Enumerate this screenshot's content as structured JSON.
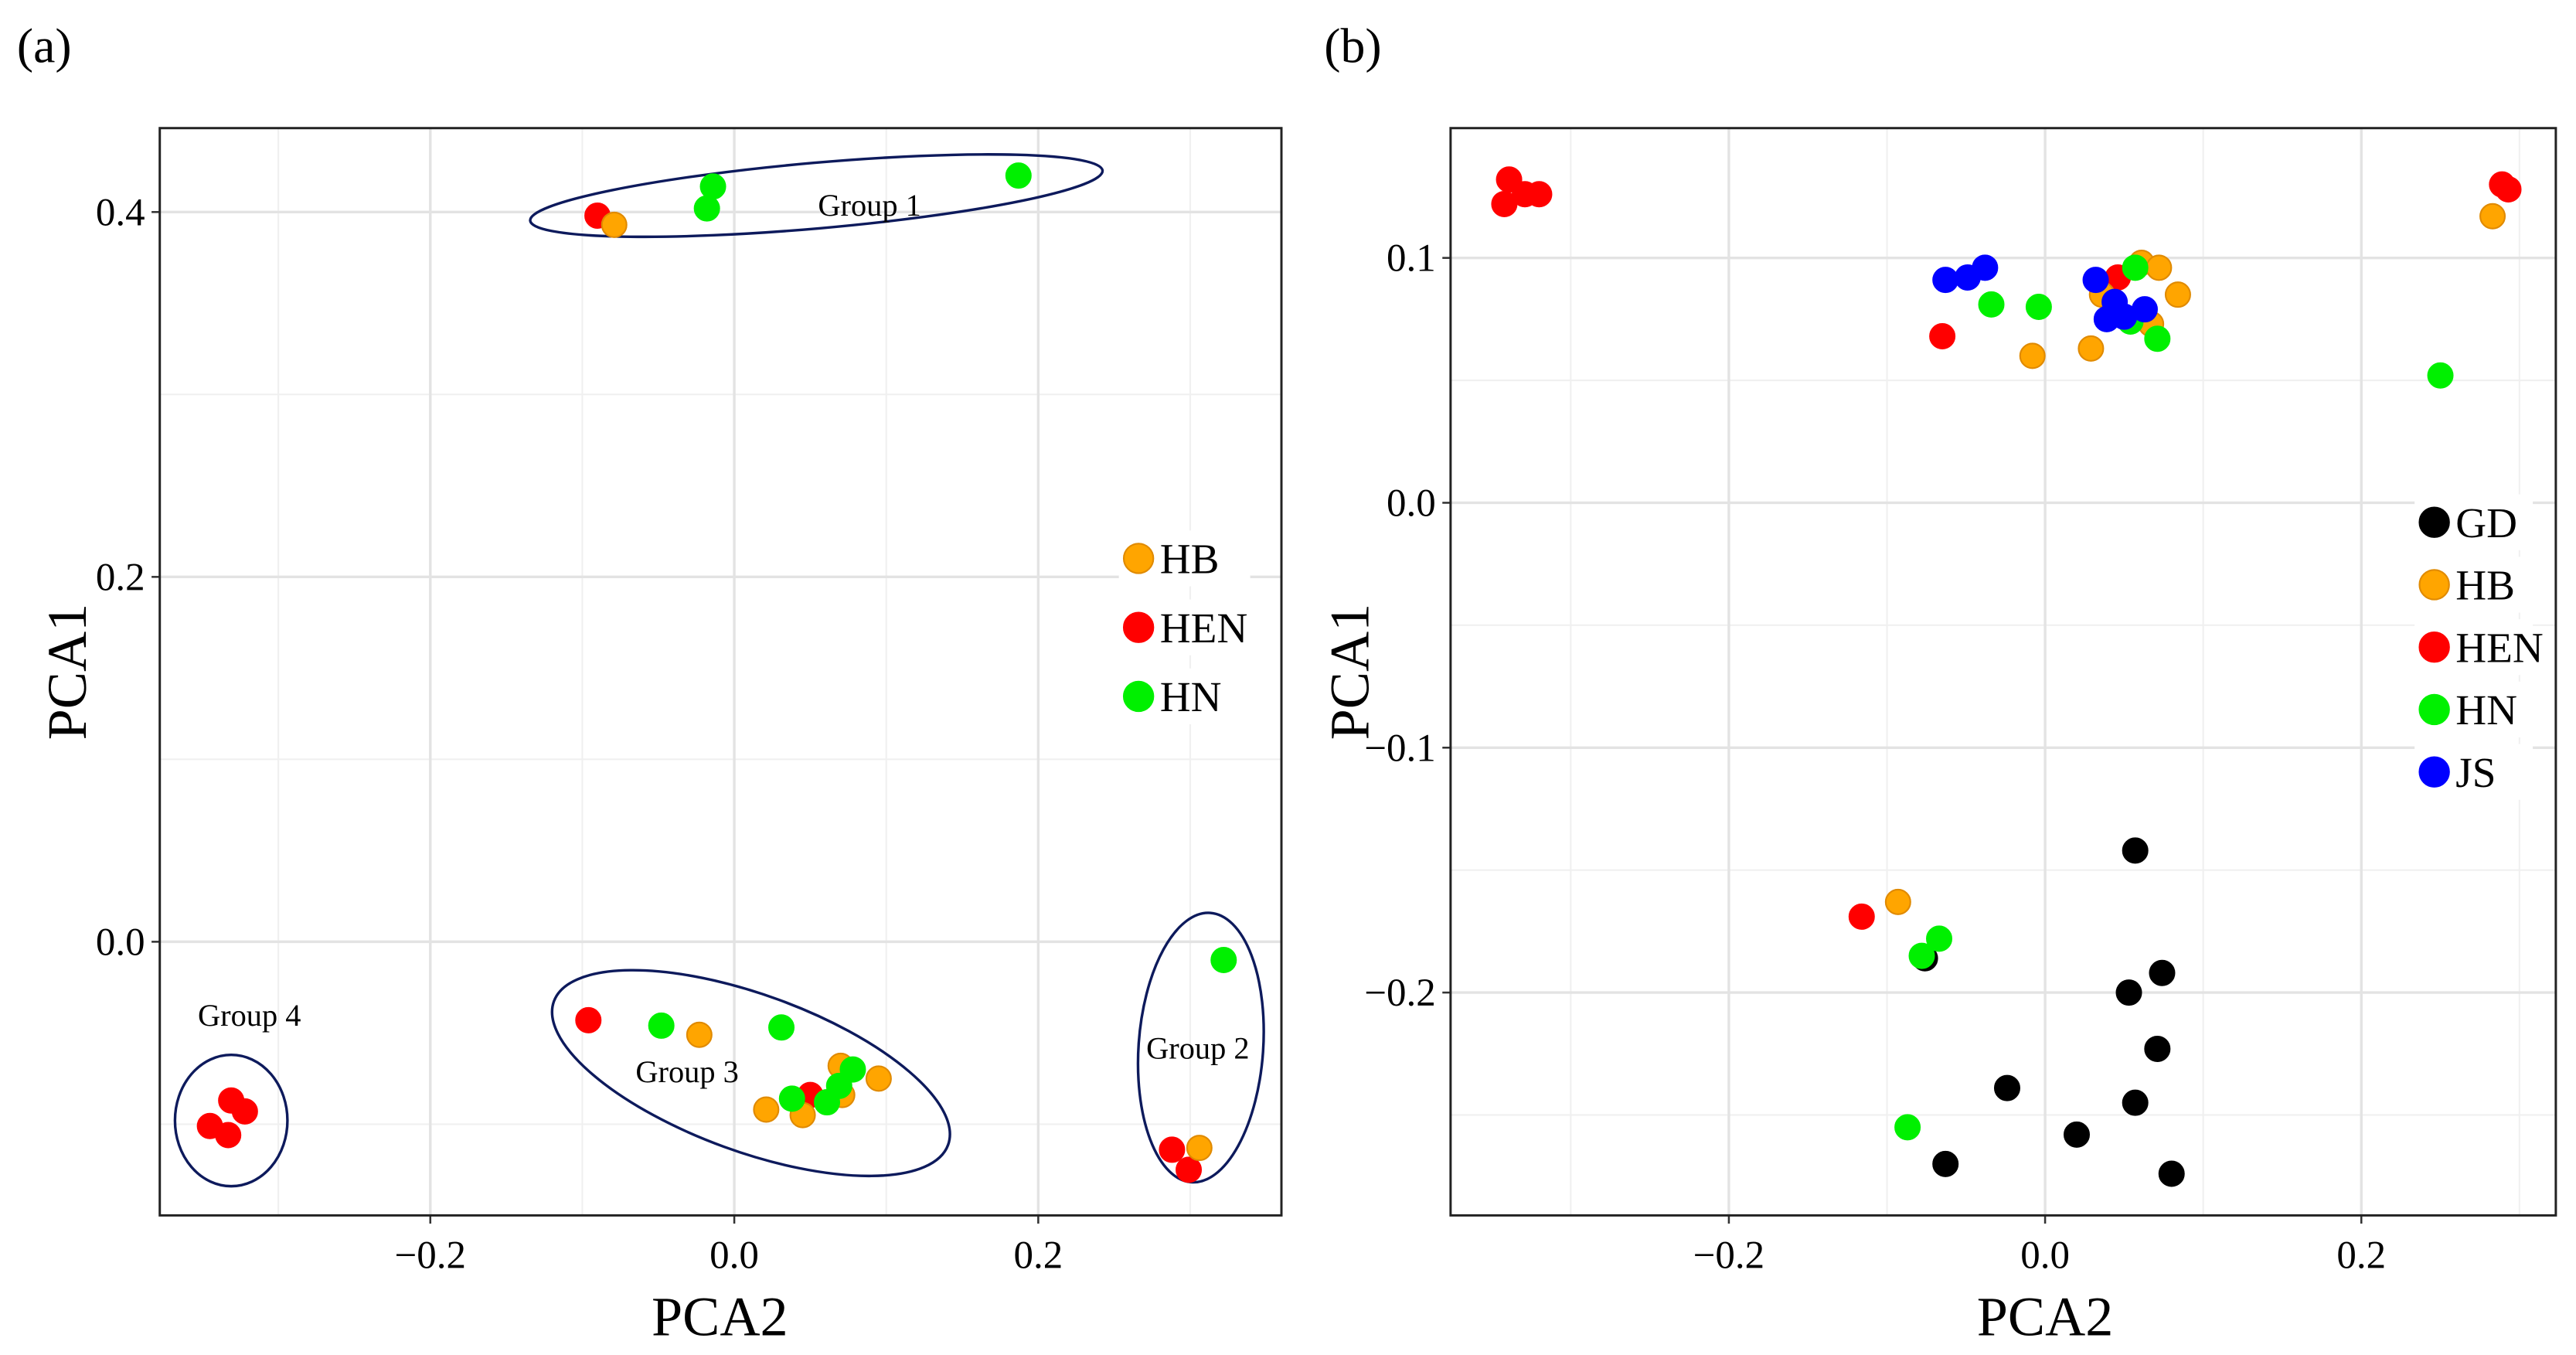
{
  "chart_data": [
    {
      "panel_label": "(a)",
      "type": "scatter",
      "xlabel": "PCA2",
      "ylabel": "PCA1",
      "xlim": [
        -0.378,
        0.36
      ],
      "ylim": [
        -0.15,
        0.446
      ],
      "xticks": [
        -0.2,
        0.0,
        0.2
      ],
      "xtick_labels": [
        "−0.2",
        "0.0",
        "0.2"
      ],
      "yticks": [
        0.0,
        0.2,
        0.4
      ],
      "ytick_labels": [
        "0.0",
        "0.2",
        "0.4"
      ],
      "minor_x": [
        -0.3,
        -0.1,
        0.1,
        0.3
      ],
      "minor_y": [
        -0.1,
        0.1,
        0.3
      ],
      "grid": true,
      "legend_placement": "right",
      "legend": [
        "HB",
        "HEN",
        "HN"
      ],
      "series": [
        {
          "name": "HEN",
          "color": "#FF0000",
          "points": [
            [
              -0.09,
              0.398
            ],
            [
              0.288,
              -0.114
            ],
            [
              0.299,
              -0.125
            ],
            [
              -0.096,
              -0.043
            ],
            [
              0.05,
              -0.084
            ],
            [
              -0.345,
              -0.101
            ],
            [
              -0.331,
              -0.087
            ],
            [
              -0.322,
              -0.093
            ],
            [
              -0.333,
              -0.106
            ]
          ]
        },
        {
          "name": "HB",
          "color": "#FFA500",
          "points": [
            [
              -0.079,
              0.393
            ],
            [
              0.306,
              -0.113
            ],
            [
              -0.023,
              -0.051
            ],
            [
              0.07,
              -0.068
            ],
            [
              0.095,
              -0.075
            ],
            [
              0.021,
              -0.092
            ],
            [
              0.045,
              -0.095
            ],
            [
              0.071,
              -0.084
            ]
          ]
        },
        {
          "name": "HN",
          "color": "#00F000",
          "points": [
            [
              -0.014,
              0.414
            ],
            [
              -0.018,
              0.402
            ],
            [
              0.187,
              0.42
            ],
            [
              0.322,
              -0.01
            ],
            [
              -0.048,
              -0.046
            ],
            [
              0.031,
              -0.047
            ],
            [
              0.078,
              -0.07
            ],
            [
              0.038,
              -0.086
            ],
            [
              0.061,
              -0.088
            ],
            [
              0.069,
              -0.079
            ]
          ]
        }
      ],
      "annotations": [
        {
          "text": "Group 1",
          "x": 0.089,
          "y": 0.398,
          "ellipse": {
            "cx": 0.054,
            "cy": 0.409,
            "rx": 0.189,
            "ry": 0.018,
            "angle": -5
          }
        },
        {
          "text": "Group 2",
          "x": 0.305,
          "y": -0.064,
          "ellipse": {
            "cx": 0.307,
            "cy": -0.058,
            "rx": 0.041,
            "ry": 0.074,
            "angle": 4
          }
        },
        {
          "text": "Group 3",
          "x": -0.031,
          "y": -0.077,
          "ellipse": {
            "cx": 0.011,
            "cy": -0.072,
            "rx": 0.138,
            "ry": 0.043,
            "angle": 20
          }
        },
        {
          "text": "Group 4",
          "x": -0.319,
          "y": -0.046,
          "ellipse": {
            "cx": -0.331,
            "cy": -0.098,
            "rx": 0.037,
            "ry": 0.036,
            "angle": 0
          }
        }
      ]
    },
    {
      "panel_label": "(b)",
      "type": "scatter",
      "xlabel": "PCA2",
      "ylabel": "PCA1",
      "xlim": [
        -0.376,
        0.323
      ],
      "ylim": [
        -0.291,
        0.153
      ],
      "xticks": [
        -0.2,
        0.0,
        0.2
      ],
      "xtick_labels": [
        "−0.2",
        "0.0",
        "0.2"
      ],
      "yticks": [
        -0.2,
        -0.1,
        0.0,
        0.1
      ],
      "ytick_labels": [
        "−0.2",
        "−0.1",
        "0.0",
        "0.1"
      ],
      "minor_x": [
        -0.3,
        -0.1,
        0.1,
        0.3
      ],
      "minor_y": [
        -0.25,
        -0.15,
        -0.05,
        0.05
      ],
      "grid": true,
      "legend_placement": "right",
      "legend": [
        "GD",
        "HB",
        "HEN",
        "HN",
        "JS"
      ],
      "series": [
        {
          "name": "GD",
          "color": "#000000",
          "points": [
            [
              -0.076,
              -0.186
            ],
            [
              0.057,
              -0.142
            ],
            [
              0.053,
              -0.2
            ],
            [
              0.074,
              -0.192
            ],
            [
              0.071,
              -0.223
            ],
            [
              -0.024,
              -0.239
            ],
            [
              0.057,
              -0.245
            ],
            [
              0.02,
              -0.258
            ],
            [
              -0.063,
              -0.27
            ],
            [
              0.08,
              -0.274
            ]
          ]
        },
        {
          "name": "HEN",
          "color": "#FF0000",
          "points": [
            [
              -0.339,
              0.132
            ],
            [
              -0.342,
              0.122
            ],
            [
              -0.329,
              0.126
            ],
            [
              -0.32,
              0.126
            ],
            [
              0.289,
              0.13
            ],
            [
              0.293,
              0.128
            ],
            [
              -0.065,
              0.068
            ],
            [
              0.046,
              0.092
            ],
            [
              -0.116,
              -0.169
            ]
          ]
        },
        {
          "name": "HB",
          "color": "#FFA500",
          "points": [
            [
              0.283,
              0.117
            ],
            [
              -0.008,
              0.06
            ],
            [
              0.029,
              0.063
            ],
            [
              0.061,
              0.098
            ],
            [
              0.072,
              0.096
            ],
            [
              0.084,
              0.085
            ],
            [
              0.036,
              0.085
            ],
            [
              0.067,
              0.073
            ],
            [
              -0.093,
              -0.163
            ]
          ]
        },
        {
          "name": "HN",
          "color": "#00F000",
          "points": [
            [
              0.25,
              0.052
            ],
            [
              -0.034,
              0.081
            ],
            [
              -0.004,
              0.08
            ],
            [
              0.057,
              0.096
            ],
            [
              0.054,
              0.074
            ],
            [
              0.071,
              0.067
            ],
            [
              -0.067,
              -0.178
            ],
            [
              -0.078,
              -0.185
            ],
            [
              -0.087,
              -0.255
            ]
          ]
        },
        {
          "name": "JS",
          "color": "#0000FF",
          "points": [
            [
              -0.063,
              0.091
            ],
            [
              -0.049,
              0.092
            ],
            [
              -0.038,
              0.096
            ],
            [
              0.032,
              0.091
            ],
            [
              0.044,
              0.082
            ],
            [
              0.039,
              0.075
            ],
            [
              0.05,
              0.076
            ],
            [
              0.063,
              0.079
            ]
          ]
        }
      ]
    }
  ]
}
